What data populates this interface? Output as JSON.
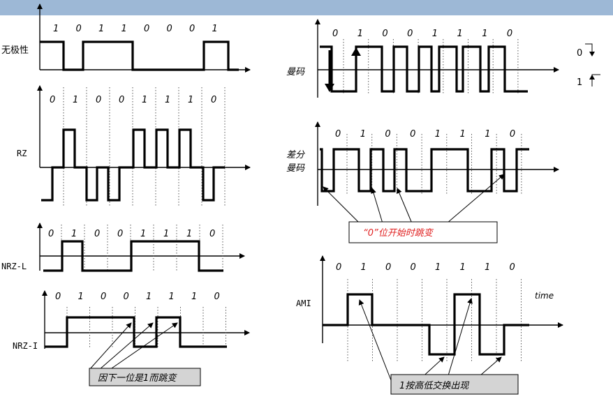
{
  "labels": {
    "unipolar": "无极性",
    "rz": "RZ",
    "nrzl": "NRZ-L",
    "nrzi": "NRZ-I",
    "manchester": "曼码",
    "diff1": "差分",
    "diff2": "曼码",
    "ami": "AMI",
    "time": "time",
    "legend0": "0",
    "legend1": "1"
  },
  "callouts": {
    "nrzi": "因下一位是1而跳变",
    "diff": "“0”位开始时跳变",
    "ami": "1按高低交换出现"
  },
  "bits": {
    "unipolar": [
      "1",
      "0",
      "1",
      "1",
      "0",
      "0",
      "0",
      "1"
    ],
    "rz": [
      "0",
      "1",
      "0",
      "0",
      "1",
      "1",
      "1",
      "0"
    ],
    "nrzl": [
      "0",
      "1",
      "0",
      "0",
      "1",
      "1",
      "1",
      "0"
    ],
    "nrzi": [
      "0",
      "1",
      "0",
      "0",
      "1",
      "1",
      "1",
      "0"
    ],
    "manchester": [
      "0",
      "1",
      "0",
      "0",
      "1",
      "1",
      "1",
      "0"
    ],
    "diff": [
      "0",
      "1",
      "0",
      "0",
      "1",
      "1",
      "1",
      "0"
    ],
    "ami": [
      "0",
      "1",
      "0",
      "0",
      "1",
      "1",
      "1",
      "0"
    ]
  },
  "colors": {
    "topbar": "#9db8d6",
    "callout_diff_text": "#e02020",
    "callout_gray_bg": "#d4d4d4"
  }
}
